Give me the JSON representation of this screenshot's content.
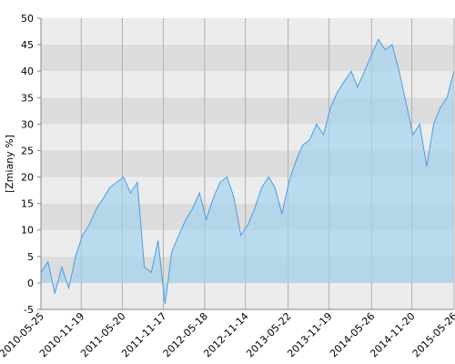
{
  "chart_data": {
    "type": "line",
    "y_label": "[Zmiany %]",
    "x": [
      "2010-05-25",
      "2010-06-25",
      "2010-07-25",
      "2010-08-25",
      "2010-09-25",
      "2010-10-25",
      "2010-11-25",
      "2010-12-25",
      "2011-01-25",
      "2011-02-25",
      "2011-03-25",
      "2011-04-25",
      "2011-05-25",
      "2011-06-25",
      "2011-07-25",
      "2011-08-25",
      "2011-09-25",
      "2011-10-25",
      "2011-11-25",
      "2011-12-25",
      "2012-01-25",
      "2012-02-25",
      "2012-03-25",
      "2012-04-25",
      "2012-05-25",
      "2012-06-25",
      "2012-07-25",
      "2012-08-25",
      "2012-09-25",
      "2012-10-25",
      "2012-11-25",
      "2012-12-25",
      "2013-01-25",
      "2013-02-25",
      "2013-03-25",
      "2013-04-25",
      "2013-05-25",
      "2013-06-25",
      "2013-07-25",
      "2013-08-25",
      "2013-09-25",
      "2013-10-25",
      "2013-11-25",
      "2013-12-25",
      "2014-01-25",
      "2014-02-25",
      "2014-03-25",
      "2014-04-25",
      "2014-05-25",
      "2014-06-25",
      "2014-07-25",
      "2014-08-25",
      "2014-09-25",
      "2014-10-25",
      "2014-11-25",
      "2014-12-25",
      "2015-01-25",
      "2015-02-25",
      "2015-03-25",
      "2015-04-25",
      "2015-05-25"
    ],
    "series": [
      {
        "color": "#4a9de6",
        "values": [
          2,
          4,
          -2,
          3,
          -1,
          5,
          9,
          11,
          14,
          16,
          18,
          19,
          20,
          17,
          19,
          3,
          2,
          8,
          -4,
          6,
          9,
          12,
          14,
          17,
          12,
          16,
          19,
          20,
          16,
          9,
          11,
          14,
          18,
          20,
          18,
          13,
          19,
          23,
          26,
          27,
          30,
          28,
          33,
          36,
          38,
          40,
          37,
          40,
          43,
          46,
          44,
          45,
          40,
          34,
          28,
          30,
          22,
          30,
          33,
          35,
          40
        ]
      }
    ],
    "xlim": [
      "2010-05-25",
      "2015-05-26"
    ],
    "xticks": [
      "2010-05-25",
      "2010-11-19",
      "2011-05-20",
      "2011-11-17",
      "2012-05-18",
      "2012-11-14",
      "2013-05-22",
      "2013-11-19",
      "2014-05-26",
      "2014-11-20",
      "2015-05-26"
    ],
    "ylim": [
      -5,
      50
    ],
    "yticks": [
      -5,
      0,
      5,
      10,
      15,
      20,
      25,
      30,
      35,
      40,
      45,
      50
    ],
    "grid": true
  }
}
